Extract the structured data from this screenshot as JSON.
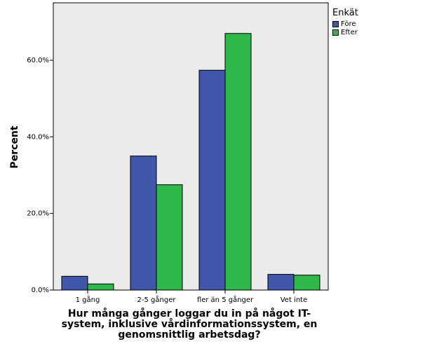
{
  "chart_data": {
    "type": "bar",
    "categories": [
      "1 gång",
      "2-5 gånger",
      "fler än 5 gånger",
      "Vet inte"
    ],
    "series": [
      {
        "name": "Före",
        "values": [
          3.6,
          35.0,
          57.4,
          4.1
        ],
        "color": "#3f56a9"
      },
      {
        "name": "Efter",
        "values": [
          1.6,
          27.5,
          67.0,
          3.9
        ],
        "color": "#2eb84a"
      }
    ],
    "legend_title": "Enkät",
    "legend_position": "top-right",
    "xlabel_lines": [
      "Hur många gånger loggar du in på något IT-",
      "system, inklusive vårdinformationssystem, en",
      "genomsnittlig arbetsdag?"
    ],
    "ylabel": "Percent",
    "ylim": [
      0,
      75
    ],
    "yticks": [
      0,
      20,
      40,
      60
    ],
    "ytick_labels": [
      "0.0%",
      "20.0%",
      "40.0%",
      "60.0%"
    ],
    "grid": false,
    "plot_background": "#ebebeb"
  }
}
